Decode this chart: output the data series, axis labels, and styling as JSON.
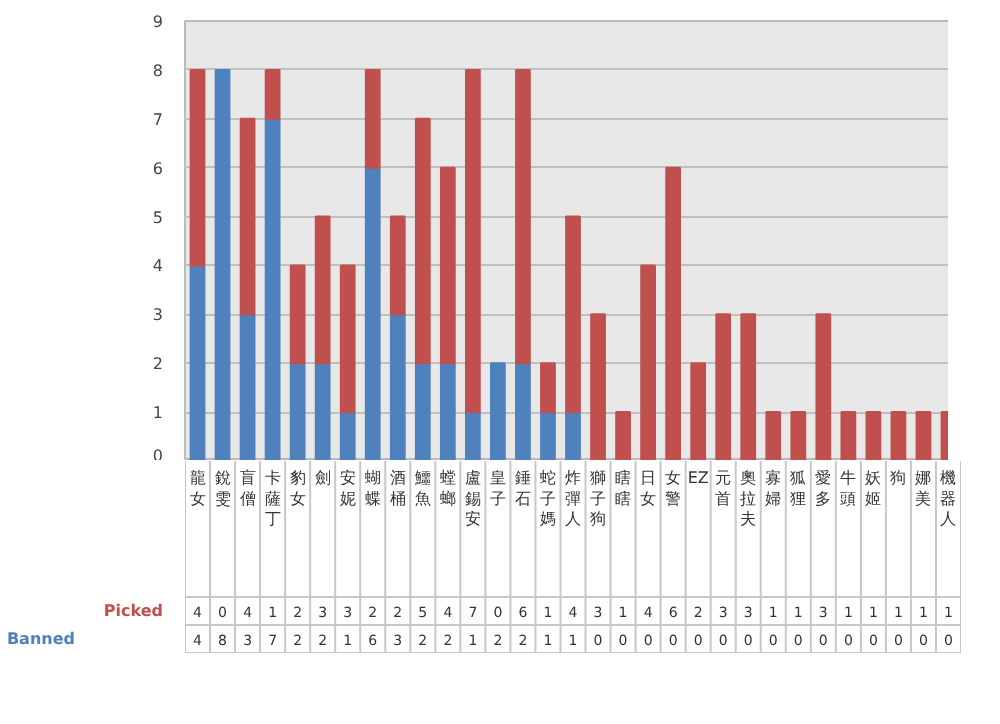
{
  "chart_data": {
    "type": "bar",
    "stacked": true,
    "categories": [
      "龍女",
      "銳雯",
      "盲僧",
      "卡薩丁",
      "豹女",
      "劍",
      "安妮",
      "蝴蝶",
      "酒桶",
      "鱷魚",
      "螳螂",
      "盧錫安",
      "皇子",
      "錘石",
      "蛇子媽",
      "炸彈人",
      "獅子狗",
      "瞎瞎",
      "日女",
      "女警",
      "EZ",
      "元首",
      "奧拉夫",
      "寡婦",
      "狐狸",
      "愛多",
      "牛頭",
      "妖姬",
      "狗",
      "娜美",
      "機器人"
    ],
    "series": [
      {
        "name": "Banned",
        "color": "#4f81bd",
        "values": [
          4,
          8,
          3,
          7,
          2,
          2,
          1,
          6,
          3,
          2,
          2,
          1,
          2,
          2,
          1,
          1,
          0,
          0,
          0,
          0,
          0,
          0,
          0,
          0,
          0,
          0,
          0,
          0,
          0,
          0,
          0
        ]
      },
      {
        "name": "Picked",
        "color": "#c0504d",
        "values": [
          4,
          0,
          4,
          1,
          2,
          3,
          3,
          2,
          2,
          5,
          4,
          7,
          0,
          6,
          1,
          4,
          3,
          1,
          4,
          6,
          2,
          3,
          3,
          1,
          1,
          3,
          1,
          1,
          1,
          1,
          1
        ]
      }
    ],
    "ylim": [
      0,
      9
    ],
    "yticks": [
      0,
      1,
      2,
      3,
      4,
      5,
      6,
      7,
      8,
      9
    ],
    "grid": "y",
    "data_labels": true
  }
}
